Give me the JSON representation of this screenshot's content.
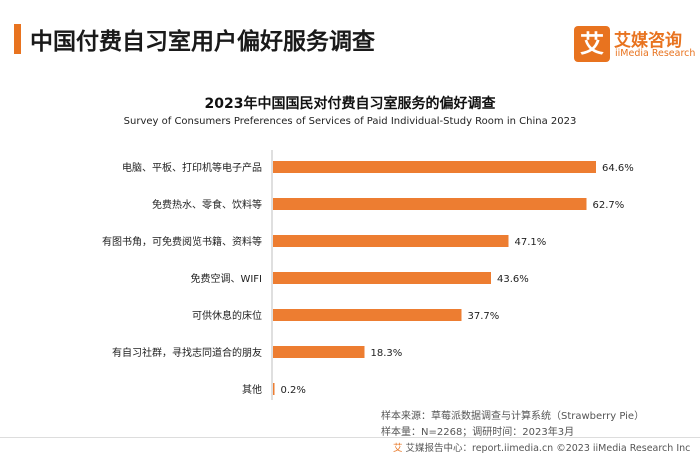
{
  "header": {
    "title": "中国付费自习室用户偏好服务调查",
    "logo_mark": "艾",
    "logo_name": "艾媒咨询",
    "logo_sub": "iiMedia Research"
  },
  "chart_data": {
    "type": "bar",
    "orientation": "horizontal",
    "title": "2023年中国国民对付费自习室服务的偏好调查",
    "subtitle": "Survey of Consumers Preferences of Services of Paid Individual-Study Room in China 2023",
    "categories": [
      "电脑、平板、打印机等电子产品",
      "免费热水、零食、饮料等",
      "有图书角，可免费阅览书籍、资料等",
      "免费空调、WIFI",
      "可供休息的床位",
      "有自习社群，寻找志同道合的朋友",
      "其他"
    ],
    "values": [
      64.6,
      62.7,
      47.1,
      43.6,
      37.7,
      18.3,
      0.2
    ],
    "value_labels": [
      "64.6%",
      "62.7%",
      "47.1%",
      "43.6%",
      "37.7%",
      "18.3%",
      "0.2%"
    ],
    "unit": "%",
    "xlim": [
      0,
      70
    ],
    "bar_color": "#ed7d31",
    "grid": false,
    "legend": "none"
  },
  "footnotes": {
    "source": "样本来源：草莓派数据调查与计算系统（Strawberry Pie）",
    "sample": "样本量：N=2268；调研时间：2023年3月"
  },
  "footer": {
    "icon": "艾",
    "text": "艾媒报告中心：report.iimedia.cn  ©2023  iiMedia Research  Inc"
  }
}
